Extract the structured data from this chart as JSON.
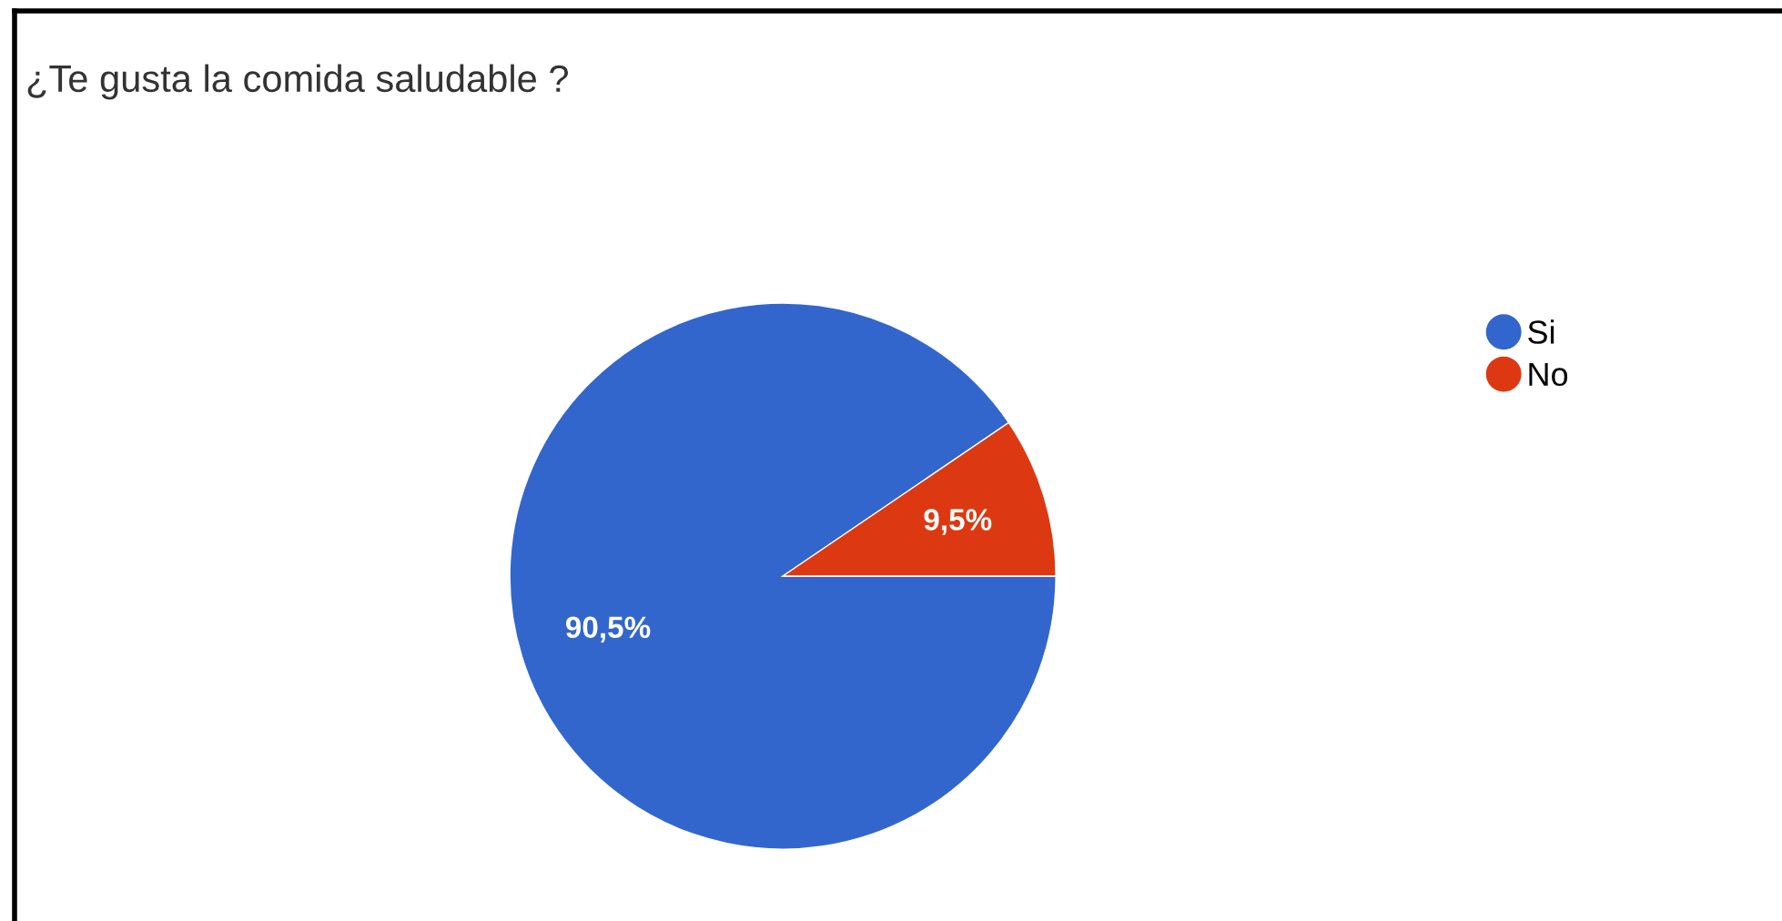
{
  "chart_data": {
    "type": "pie",
    "title": "¿Te gusta la comida saludable ?",
    "categories": [
      "Si",
      "No"
    ],
    "values": [
      90.5,
      9.5
    ],
    "colors": [
      "#3366cc",
      "#dc3912"
    ],
    "value_labels": [
      "90,5%",
      "9,5%"
    ],
    "legend": "top right"
  }
}
